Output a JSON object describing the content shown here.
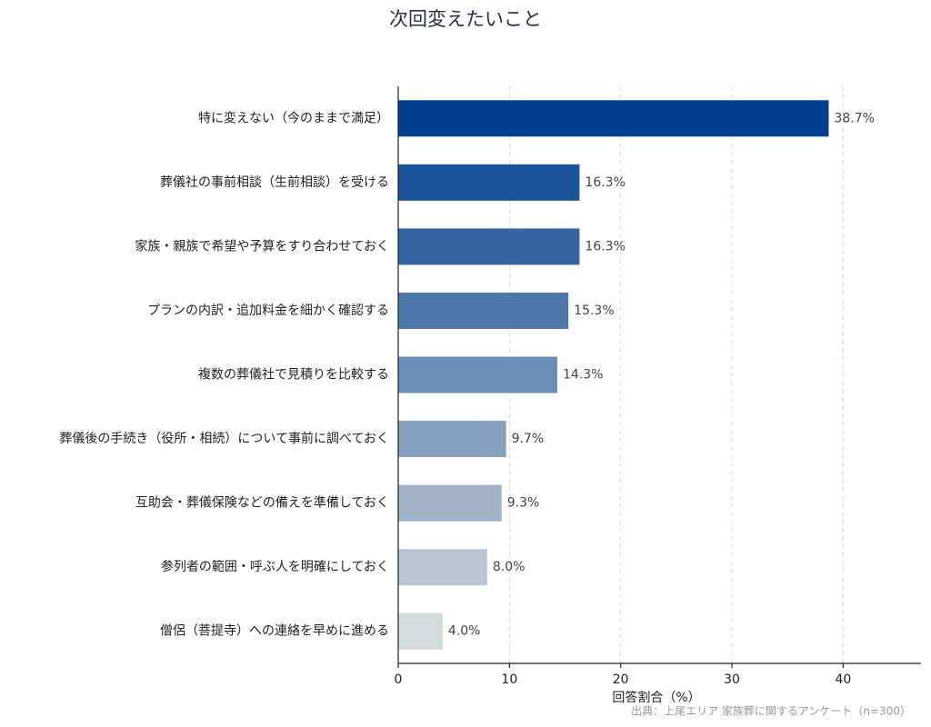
{
  "chart_data": {
    "type": "barh",
    "title": "次回変えたいこと",
    "categories": [
      "特に変えない（今のままで満足）",
      "葬儀社の事前相談（生前相談）を受ける",
      "家族・親族で希望や予算をすり合わせておく",
      "プランの内訳・追加料金を細かく確認する",
      "複数の葬儀社で見積りを比較する",
      "葬儀後の手続き（役所・相続）について事前に調べておく",
      "互助会・葬儀保険などの備えを準備しておく",
      "参列者の範囲・呼ぶ人を明確にしておく",
      "僧侶（菩提寺）への連絡を早めに進める"
    ],
    "values": [
      38.7,
      16.3,
      16.3,
      15.3,
      14.3,
      9.7,
      9.3,
      8.0,
      4.0
    ],
    "value_labels": [
      "38.7%",
      "16.3%",
      "16.3%",
      "15.3%",
      "14.3%",
      "9.7%",
      "9.3%",
      "8.0%",
      "4.0%"
    ],
    "colors": [
      "#023f8c",
      "#1b5298",
      "#3565a2",
      "#4e78ab",
      "#6a8db7",
      "#87a0c0",
      "#a0b3c9",
      "#bac6d3",
      "#d5dadd"
    ],
    "xlabel": "回答割合（%）",
    "xlim": [
      0,
      47
    ],
    "xticks": [
      0,
      10,
      20,
      30,
      40
    ],
    "grid": true,
    "source": "出典：上尾エリア 家族葬に関するアンケート（n=300）"
  }
}
